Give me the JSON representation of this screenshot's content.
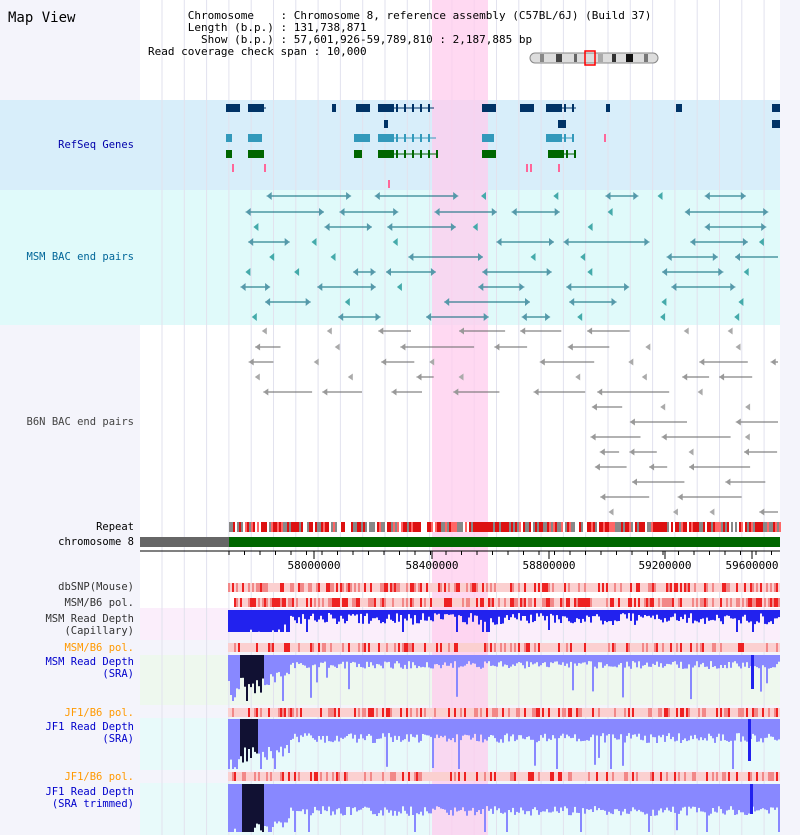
{
  "header": {
    "title": "Map View",
    "chromosome_label": "Chromosome",
    "chromosome_value": "Chromosome 8, reference assembly (C57BL/6J) (Build 37)",
    "length_label": "Length (b.p.)",
    "length_value": "131,738,871",
    "show_label": "Show (b.p.)",
    "show_value": "57,601,926-59,789,810 : 2,187,885 bp",
    "coverage_label": "Read coverage check span",
    "coverage_value": "10,000"
  },
  "tracks": {
    "refseq": "RefSeq Genes",
    "msm_bac": "MSM BAC end pairs",
    "b6n_bac": "B6N BAC end pairs",
    "repeat": "Repeat",
    "chromosome": "chromosome 8",
    "dbsnp": "dbSNP(Mouse)",
    "msm_b6_pol_1": "MSM/B6 pol.",
    "msm_depth_cap": "MSM Read Depth\n(Capillary)",
    "msm_b6_pol_2": "MSM/B6 pol.",
    "msm_depth_sra": "MSM Read Depth\n(SRA)",
    "jf1_b6_pol_1": "JF1/B6 pol.",
    "jf1_depth_sra": "JF1 Read Depth\n(SRA)",
    "jf1_b6_pol_2": "JF1/B6 pol.",
    "jf1_depth_trim": "JF1 Read Depth\n(SRA trimmed)"
  },
  "axis": {
    "ticks": [
      "58000000",
      "58400000",
      "58800000",
      "59200000",
      "59600000"
    ]
  },
  "colors": {
    "highlight": "#ffccee",
    "refseq_bg": "#d8eefa",
    "msm_bg": "#e0fafa",
    "gene_dark": "#003366",
    "gene_green": "#006600",
    "chrom_green": "#006600",
    "depth_blue": "#2222ee",
    "depth_light": "#8888ff",
    "pol_label": "#ff9900",
    "depth_label": "#0000cc",
    "msm_label": "#006699"
  }
}
